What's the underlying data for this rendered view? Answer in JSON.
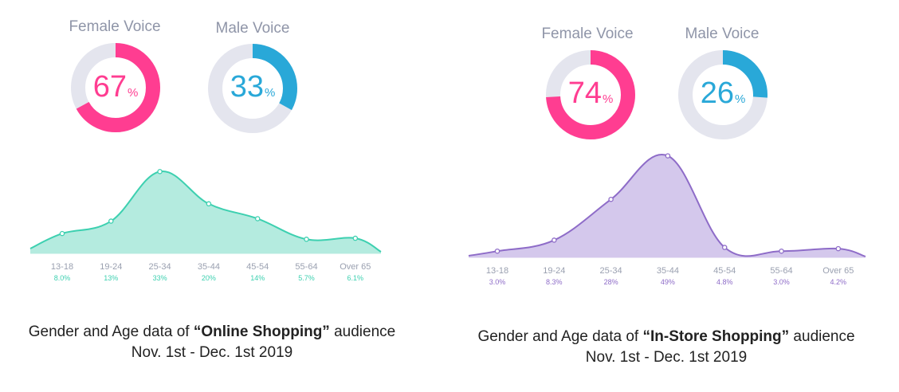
{
  "chart_data": [
    {
      "id": "online",
      "type": "donut",
      "series": [
        {
          "name": "Female Voice",
          "value": 67,
          "unit": "%",
          "color": "#ff3d91"
        },
        {
          "name": "Male Voice",
          "value": 33,
          "unit": "%",
          "color": "#29a8d8"
        }
      ],
      "ring_track_color": "#e4e5ee"
    },
    {
      "id": "online_age",
      "type": "area",
      "categories": [
        "13-18",
        "19-24",
        "25-34",
        "35-44",
        "45-54",
        "55-64",
        "Over 65"
      ],
      "values": [
        8.0,
        13,
        33,
        20,
        14,
        5.7,
        6.1
      ],
      "value_labels": [
        "8.0%",
        "13%",
        "33%",
        "20%",
        "14%",
        "5.7%",
        "6.1%"
      ],
      "color": "#3dd0b0",
      "fill_color": "#b4ebdf",
      "ylim": [
        0,
        45
      ]
    },
    {
      "id": "instore",
      "type": "donut",
      "series": [
        {
          "name": "Female Voice",
          "value": 74,
          "unit": "%",
          "color": "#ff3d91"
        },
        {
          "name": "Male Voice",
          "value": 26,
          "unit": "%",
          "color": "#29a8d8"
        }
      ],
      "ring_track_color": "#e4e5ee"
    },
    {
      "id": "instore_age",
      "type": "area",
      "categories": [
        "13-18",
        "19-24",
        "25-34",
        "35-44",
        "45-54",
        "55-64",
        "Over 65"
      ],
      "values": [
        3.0,
        8.3,
        28,
        49,
        4.8,
        3.0,
        4.2
      ],
      "value_labels": [
        "3.0%",
        "8.3%",
        "28%",
        "49%",
        "4.8%",
        "3.0%",
        "4.2%"
      ],
      "color": "#8e6cc8",
      "fill_color": "#d4c8ec",
      "ylim": [
        0,
        55
      ]
    }
  ],
  "captions": {
    "online": {
      "prefix": "Gender and Age data of ",
      "bold": "“Online Shopping”",
      "suffix": " audience",
      "line2": "Nov. 1st  - Dec. 1st  2019"
    },
    "instore": {
      "prefix": "Gender and Age data of ",
      "bold": "“In-Store Shopping”",
      "suffix": " audience",
      "line2": "Nov. 1st  - Dec. 1st  2019"
    }
  }
}
